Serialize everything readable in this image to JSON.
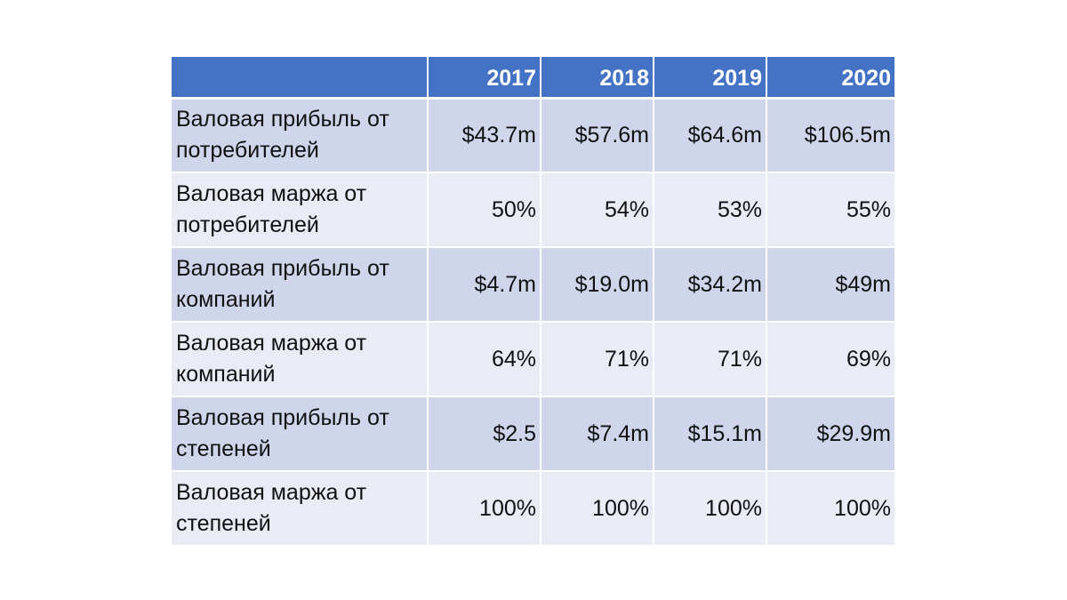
{
  "table": {
    "header": [
      "",
      "2017",
      "2018",
      "2019",
      "2020"
    ],
    "rows": [
      {
        "label": "Валовая прибыль от потребителей",
        "values": [
          "$43.7m",
          "$57.6m",
          "$64.6m",
          "$106.5m"
        ]
      },
      {
        "label": "Валовая маржа от потребителей",
        "values": [
          "50%",
          "54%",
          "53%",
          "55%"
        ]
      },
      {
        "label": "Валовая прибыль от компаний",
        "values": [
          "$4.7m",
          "$19.0m",
          "$34.2m",
          "$49m"
        ]
      },
      {
        "label": "Валовая маржа от компаний",
        "values": [
          "64%",
          "71%",
          "71%",
          "69%"
        ]
      },
      {
        "label": "Валовая прибыль от степеней",
        "values": [
          "$2.5",
          "$7.4m",
          "$15.1m",
          "$29.9m"
        ]
      },
      {
        "label": "Валовая маржа от степеней",
        "values": [
          "100%",
          "100%",
          "100%",
          "100%"
        ]
      }
    ]
  },
  "colors": {
    "header_bg": "#4472c4",
    "row_dark": "#cfd5ea",
    "row_light": "#e9ebf5"
  }
}
